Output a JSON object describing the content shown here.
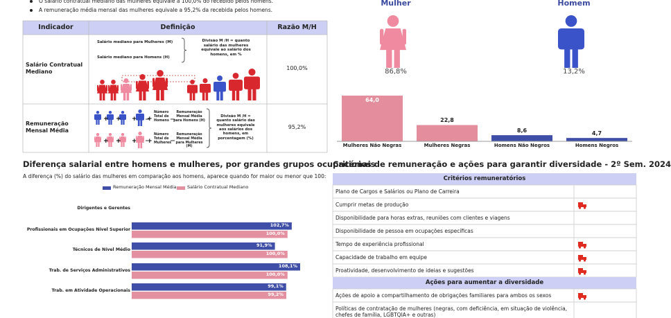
{
  "summary": {
    "bullets": [
      "O salário contratual mediano das mulheres equivale a 100,0% do recebido pelos homens.",
      "A remuneração média mensal das mulheres equivale a 95,2% da recebida pelos homens."
    ]
  },
  "indicator_table": {
    "headers": [
      "Indicador",
      "Definição",
      "Razão M/H"
    ],
    "rows": [
      {
        "indicator": "Salário Contratual Mediano",
        "definition": [
          "Salário mediano para Mulheres (M)",
          "Salário mediano para Homens (H)",
          "Divisão M /H = quanto salário das mulheres equivale ao salário dos homens, em %"
        ],
        "ratio": "100,0%"
      },
      {
        "indicator": "Remuneração Mensal Média",
        "definition": [
          "Número Total de Homens",
          "Remuneração Mensal Média para Homens (H)",
          "Número Total de Mulheres",
          "Remuneração Mensal Média para Mulheres (M)",
          "Divisão M /H = quanto salário das mulheres equivale aos salários dos homens, em porcentagem (%)"
        ],
        "ratio": "95,2%"
      }
    ]
  },
  "chart_data": [
    {
      "type": "pictogram",
      "categories": [
        "Mulher",
        "Homem"
      ],
      "values": [
        86.8,
        13.2
      ],
      "value_labels": [
        "86,8%",
        "13,2%"
      ],
      "colors": [
        "#ef8aa0",
        "#3b53c9"
      ]
    },
    {
      "type": "bar",
      "categories": [
        "Mulheres Não Negras",
        "Mulheres Negras",
        "Homens Não Negros",
        "Homens Negros"
      ],
      "values": [
        64.0,
        22.8,
        8.6,
        4.7
      ],
      "value_labels": [
        "64,0",
        "22,8",
        "8,6",
        "4,7"
      ],
      "colors": [
        "#e38d9d",
        "#e38d9d",
        "#3f4ea6",
        "#3f4ea6"
      ]
    },
    {
      "type": "hbar",
      "title": "Diferença salarial entre homens e mulheres, por grandes grupos ocupacionais",
      "subtitle": "A diferença (%) do salário das mulheres em comparação aos homens, aparece quando for maior ou menor que 100:",
      "categories": [
        "Dirigentes e Gerentes",
        "Profissionais em Ocupações Nível Superior",
        "Técnicos de Nível Médio",
        "Trab. de Serviços Administrativos",
        "Trab. em Atividade Operacionais"
      ],
      "series": [
        {
          "name": "Remuneração Mensal Média",
          "color": "#3f4ea6",
          "values": [
            null,
            102.7,
            91.9,
            108.1,
            99.1
          ],
          "value_labels": [
            null,
            "102,7%",
            "91,9%",
            "108,1%",
            "99,1%"
          ]
        },
        {
          "name": "Salário Contratual Mediano",
          "color": "#e391a0",
          "values": [
            null,
            100.0,
            100.0,
            100.0,
            99.2
          ],
          "value_labels": [
            null,
            "100,0%",
            "100,0%",
            "100,0%",
            "99,2%"
          ]
        }
      ]
    }
  ],
  "criteria": {
    "title": "Critérios de remuneração e ações para garantir diversidade - 2º Sem. 2024",
    "sections": [
      {
        "header": "Critérios remuneratórios",
        "rows": [
          {
            "text": "Plano de Cargos e Salários ou Plano de Carreira",
            "adopted": false
          },
          {
            "text": "Cumprir metas de produção",
            "adopted": true
          },
          {
            "text": "Disponibilidade para horas extras, reuniões com clientes e viagens",
            "adopted": false
          },
          {
            "text": "Disponibilidade de pessoa em ocupações específicas",
            "adopted": false
          },
          {
            "text": "Tempo de experiência profissional",
            "adopted": true
          },
          {
            "text": "Capacidade de trabalho em equipe",
            "adopted": true
          },
          {
            "text": "Proatividade, desenvolvimento de ideias e sugestões",
            "adopted": true
          }
        ]
      },
      {
        "header": "Ações para aumentar a diversidade",
        "rows": [
          {
            "text": "Ações de apoio a compartilhamento de obrigações familiares para ambos os sexos",
            "adopted": true
          },
          {
            "text": "Políticas de contratação de mulheres (negras, com deficiência, em situação de violência, chefes de família, LGBTQIA+ e outras)",
            "adopted": false
          }
        ]
      }
    ]
  }
}
